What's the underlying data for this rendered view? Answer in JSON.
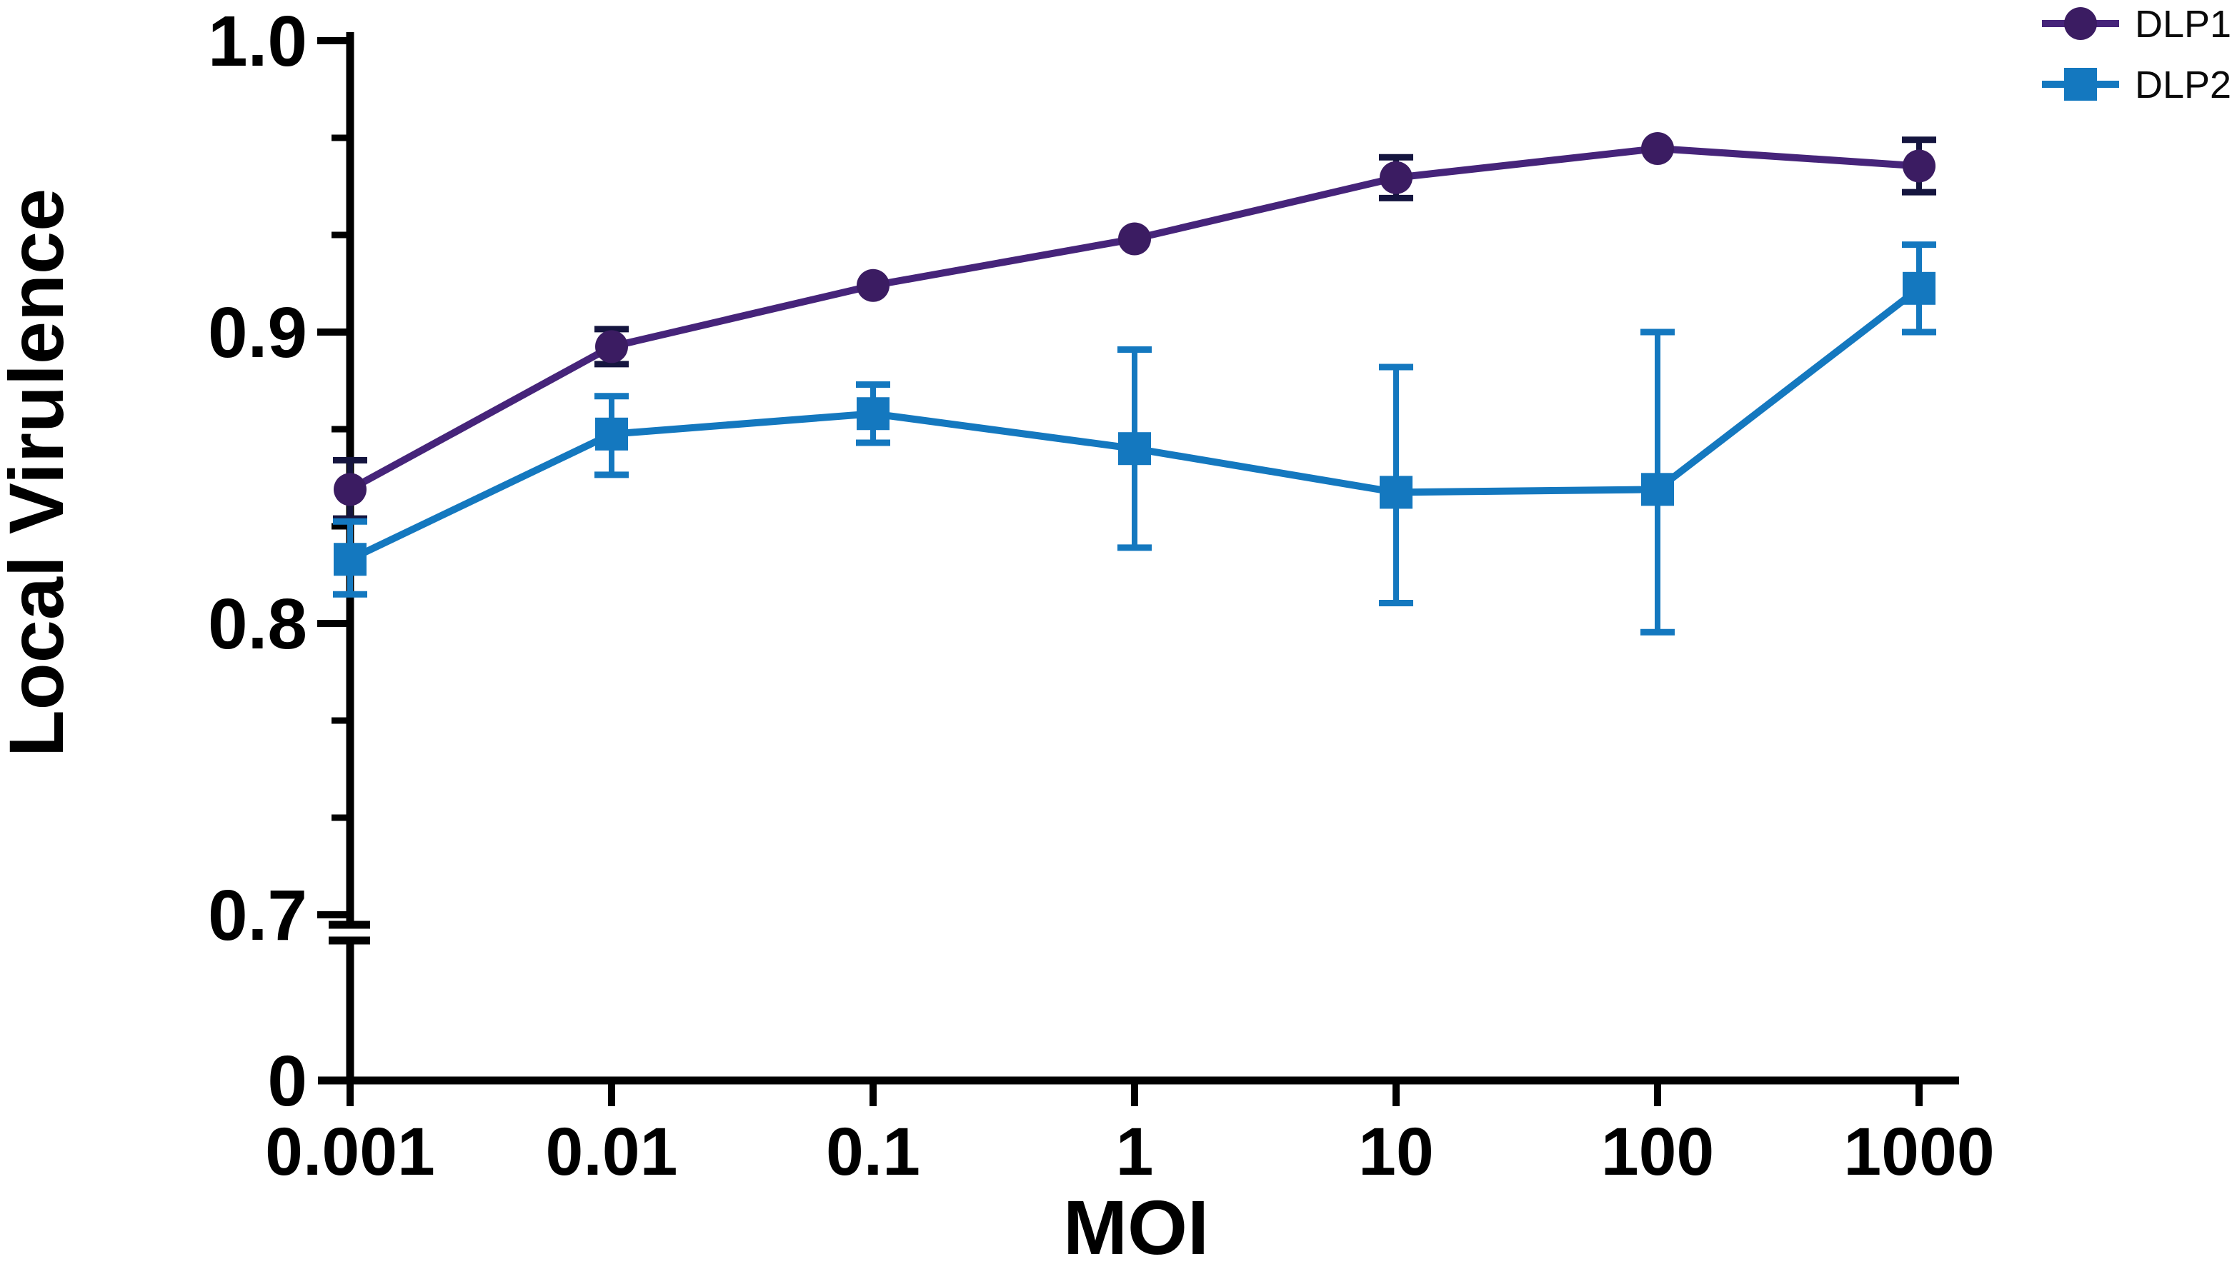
{
  "chart_data": {
    "type": "line",
    "title": "",
    "xlabel": "MOI",
    "ylabel": "Local Virulence",
    "x_scale": "log",
    "x_values": [
      0.001,
      0.01,
      0.1,
      1,
      10,
      100,
      1000
    ],
    "x_tick_labels": [
      "0.001",
      "0.01",
      "0.1",
      "1",
      "10",
      "100",
      "1000"
    ],
    "y_axis": {
      "ticks": [
        {
          "value": 1.0,
          "label": "1.0"
        },
        {
          "value": 0.9,
          "label": "0.9"
        },
        {
          "value": 0.8,
          "label": "0.8"
        },
        {
          "value": 0.7,
          "label": "0.7"
        },
        {
          "value": 0.0,
          "label": "0"
        }
      ],
      "minor_ticks_per_interval": 2,
      "axis_break_between": [
        0.0,
        0.7
      ],
      "ylim_upper_segment": [
        0.7,
        1.0
      ]
    },
    "series": [
      {
        "name": "DLP1",
        "marker": "circle",
        "marker_color": "#3b1c62",
        "line_color": "#46247a",
        "error_color": "#15153f",
        "values": [
          0.846,
          0.895,
          0.916,
          0.932,
          0.953,
          0.963,
          0.957
        ],
        "err_up": [
          0.01,
          0.006,
          0.0,
          0.0,
          0.007,
          0.0,
          0.009
        ],
        "err_down": [
          0.01,
          0.006,
          0.0,
          0.0,
          0.007,
          0.0,
          0.009
        ]
      },
      {
        "name": "DLP2",
        "marker": "square",
        "marker_color": "#1478bf",
        "line_color": "#1478bf",
        "error_color": "#1478bf",
        "values": [
          0.822,
          0.865,
          0.872,
          0.86,
          0.845,
          0.846,
          0.915
        ],
        "err_up": [
          0.013,
          0.013,
          0.01,
          0.034,
          0.043,
          0.054,
          0.015
        ],
        "err_down": [
          0.012,
          0.014,
          0.01,
          0.034,
          0.038,
          0.049,
          0.015
        ]
      }
    ],
    "legend": {
      "position": "top-right",
      "entries": [
        "DLP1",
        "DLP2"
      ]
    },
    "grid": "off"
  }
}
